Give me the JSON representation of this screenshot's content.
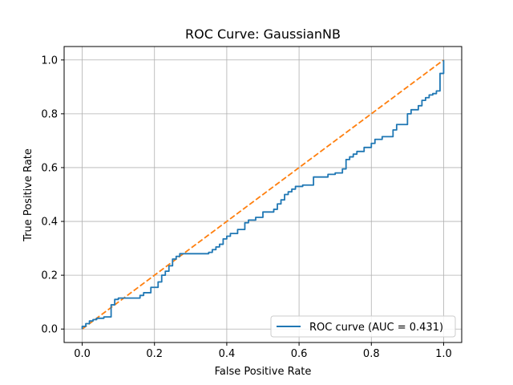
{
  "chart_data": {
    "type": "line",
    "title": "ROC Curve: GaussianNB",
    "xlabel": "False Positive Rate",
    "ylabel": "True Positive Rate",
    "xlim": [
      -0.05,
      1.05
    ],
    "ylim": [
      -0.05,
      1.05
    ],
    "xticks": [
      0.0,
      0.2,
      0.4,
      0.6,
      0.8,
      1.0
    ],
    "yticks": [
      0.0,
      0.2,
      0.4,
      0.6,
      0.8,
      1.0
    ],
    "xtick_labels": [
      "0.0",
      "0.2",
      "0.4",
      "0.6",
      "0.8",
      "1.0"
    ],
    "ytick_labels": [
      "0.0",
      "0.2",
      "0.4",
      "0.6",
      "0.8",
      "1.0"
    ],
    "grid": true,
    "legend_position": "lower-right",
    "series": [
      {
        "name": "ROC curve (AUC = 0.431)",
        "color": "#1f77b4",
        "style": "solid",
        "x": [
          0.0,
          0.0,
          0.01,
          0.01,
          0.02,
          0.02,
          0.03,
          0.03,
          0.04,
          0.04,
          0.06,
          0.06,
          0.08,
          0.08,
          0.09,
          0.09,
          0.1,
          0.1,
          0.16,
          0.16,
          0.17,
          0.17,
          0.19,
          0.19,
          0.21,
          0.21,
          0.22,
          0.22,
          0.23,
          0.23,
          0.24,
          0.24,
          0.25,
          0.25,
          0.26,
          0.26,
          0.27,
          0.27,
          0.35,
          0.35,
          0.36,
          0.36,
          0.37,
          0.37,
          0.38,
          0.38,
          0.39,
          0.39,
          0.4,
          0.4,
          0.41,
          0.41,
          0.43,
          0.43,
          0.45,
          0.45,
          0.46,
          0.46,
          0.48,
          0.48,
          0.5,
          0.5,
          0.53,
          0.53,
          0.54,
          0.54,
          0.55,
          0.55,
          0.56,
          0.56,
          0.57,
          0.57,
          0.58,
          0.58,
          0.59,
          0.59,
          0.61,
          0.61,
          0.64,
          0.64,
          0.68,
          0.68,
          0.7,
          0.7,
          0.72,
          0.72,
          0.73,
          0.73,
          0.74,
          0.74,
          0.75,
          0.75,
          0.76,
          0.76,
          0.78,
          0.78,
          0.8,
          0.8,
          0.81,
          0.81,
          0.83,
          0.83,
          0.86,
          0.86,
          0.87,
          0.87,
          0.9,
          0.9,
          0.91,
          0.91,
          0.93,
          0.93,
          0.94,
          0.94,
          0.95,
          0.95,
          0.96,
          0.96,
          0.97,
          0.97,
          0.98,
          0.98,
          0.99,
          0.99,
          1.0,
          1.0
        ],
        "y": [
          0.0,
          0.01,
          0.01,
          0.02,
          0.02,
          0.03,
          0.03,
          0.035,
          0.035,
          0.04,
          0.04,
          0.045,
          0.045,
          0.09,
          0.09,
          0.11,
          0.11,
          0.115,
          0.115,
          0.125,
          0.125,
          0.135,
          0.135,
          0.155,
          0.155,
          0.175,
          0.175,
          0.2,
          0.2,
          0.215,
          0.215,
          0.235,
          0.235,
          0.26,
          0.26,
          0.27,
          0.27,
          0.28,
          0.28,
          0.285,
          0.285,
          0.295,
          0.295,
          0.305,
          0.305,
          0.315,
          0.315,
          0.335,
          0.335,
          0.345,
          0.345,
          0.355,
          0.355,
          0.37,
          0.37,
          0.395,
          0.395,
          0.405,
          0.405,
          0.415,
          0.415,
          0.435,
          0.435,
          0.445,
          0.445,
          0.465,
          0.465,
          0.48,
          0.48,
          0.5,
          0.5,
          0.51,
          0.51,
          0.52,
          0.52,
          0.53,
          0.53,
          0.535,
          0.535,
          0.565,
          0.565,
          0.575,
          0.575,
          0.58,
          0.58,
          0.595,
          0.595,
          0.63,
          0.63,
          0.64,
          0.64,
          0.65,
          0.65,
          0.66,
          0.66,
          0.675,
          0.675,
          0.69,
          0.69,
          0.705,
          0.705,
          0.715,
          0.715,
          0.74,
          0.74,
          0.76,
          0.76,
          0.8,
          0.8,
          0.815,
          0.815,
          0.83,
          0.83,
          0.85,
          0.85,
          0.86,
          0.86,
          0.87,
          0.87,
          0.875,
          0.875,
          0.885,
          0.885,
          0.95,
          0.95,
          1.0
        ]
      },
      {
        "name": "",
        "color": "#ff7f0e",
        "style": "dashed",
        "x": [
          0.0,
          1.0
        ],
        "y": [
          0.0,
          1.0
        ]
      }
    ]
  }
}
